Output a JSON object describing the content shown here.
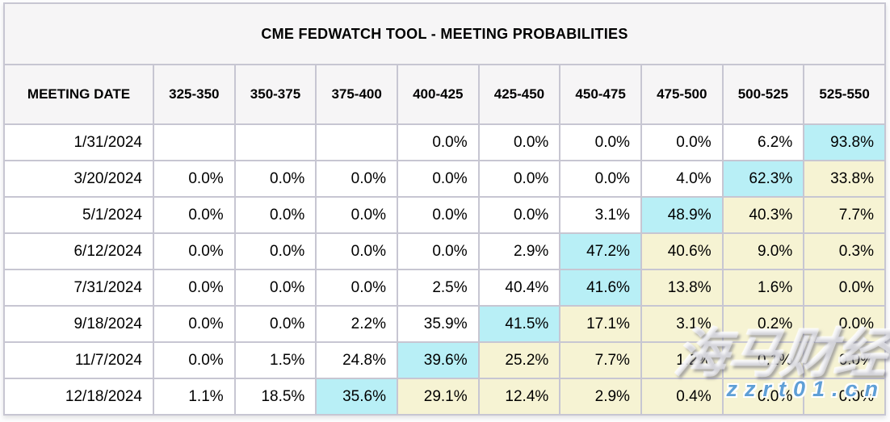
{
  "title": "CME FEDWATCH TOOL - MEETING PROBABILITIES",
  "table": {
    "date_header": "MEETING DATE",
    "rate_headers": [
      "325-350",
      "350-375",
      "375-400",
      "400-425",
      "425-450",
      "450-475",
      "475-500",
      "500-525",
      "525-550"
    ],
    "rows": [
      {
        "date": "1/31/2024",
        "cells": [
          {
            "v": "",
            "hl": "none"
          },
          {
            "v": "",
            "hl": "none"
          },
          {
            "v": "",
            "hl": "none"
          },
          {
            "v": "0.0%",
            "hl": "none"
          },
          {
            "v": "0.0%",
            "hl": "none"
          },
          {
            "v": "0.0%",
            "hl": "none"
          },
          {
            "v": "0.0%",
            "hl": "none"
          },
          {
            "v": "6.2%",
            "hl": "none"
          },
          {
            "v": "93.8%",
            "hl": "cyan"
          }
        ]
      },
      {
        "date": "3/20/2024",
        "cells": [
          {
            "v": "0.0%",
            "hl": "none"
          },
          {
            "v": "0.0%",
            "hl": "none"
          },
          {
            "v": "0.0%",
            "hl": "none"
          },
          {
            "v": "0.0%",
            "hl": "none"
          },
          {
            "v": "0.0%",
            "hl": "none"
          },
          {
            "v": "0.0%",
            "hl": "none"
          },
          {
            "v": "4.0%",
            "hl": "none"
          },
          {
            "v": "62.3%",
            "hl": "cyan"
          },
          {
            "v": "33.8%",
            "hl": "yellow"
          }
        ]
      },
      {
        "date": "5/1/2024",
        "cells": [
          {
            "v": "0.0%",
            "hl": "none"
          },
          {
            "v": "0.0%",
            "hl": "none"
          },
          {
            "v": "0.0%",
            "hl": "none"
          },
          {
            "v": "0.0%",
            "hl": "none"
          },
          {
            "v": "0.0%",
            "hl": "none"
          },
          {
            "v": "3.1%",
            "hl": "none"
          },
          {
            "v": "48.9%",
            "hl": "cyan"
          },
          {
            "v": "40.3%",
            "hl": "yellow"
          },
          {
            "v": "7.7%",
            "hl": "yellow"
          }
        ]
      },
      {
        "date": "6/12/2024",
        "cells": [
          {
            "v": "0.0%",
            "hl": "none"
          },
          {
            "v": "0.0%",
            "hl": "none"
          },
          {
            "v": "0.0%",
            "hl": "none"
          },
          {
            "v": "0.0%",
            "hl": "none"
          },
          {
            "v": "2.9%",
            "hl": "none"
          },
          {
            "v": "47.2%",
            "hl": "cyan"
          },
          {
            "v": "40.6%",
            "hl": "yellow"
          },
          {
            "v": "9.0%",
            "hl": "yellow"
          },
          {
            "v": "0.3%",
            "hl": "yellow"
          }
        ]
      },
      {
        "date": "7/31/2024",
        "cells": [
          {
            "v": "0.0%",
            "hl": "none"
          },
          {
            "v": "0.0%",
            "hl": "none"
          },
          {
            "v": "0.0%",
            "hl": "none"
          },
          {
            "v": "2.5%",
            "hl": "none"
          },
          {
            "v": "40.4%",
            "hl": "none"
          },
          {
            "v": "41.6%",
            "hl": "cyan"
          },
          {
            "v": "13.8%",
            "hl": "yellow"
          },
          {
            "v": "1.6%",
            "hl": "yellow"
          },
          {
            "v": "0.0%",
            "hl": "yellow"
          }
        ]
      },
      {
        "date": "9/18/2024",
        "cells": [
          {
            "v": "0.0%",
            "hl": "none"
          },
          {
            "v": "0.0%",
            "hl": "none"
          },
          {
            "v": "2.2%",
            "hl": "none"
          },
          {
            "v": "35.9%",
            "hl": "none"
          },
          {
            "v": "41.5%",
            "hl": "cyan"
          },
          {
            "v": "17.1%",
            "hl": "yellow"
          },
          {
            "v": "3.1%",
            "hl": "yellow"
          },
          {
            "v": "0.2%",
            "hl": "yellow"
          },
          {
            "v": "0.0%",
            "hl": "yellow"
          }
        ]
      },
      {
        "date": "11/7/2024",
        "cells": [
          {
            "v": "0.0%",
            "hl": "none"
          },
          {
            "v": "1.5%",
            "hl": "none"
          },
          {
            "v": "24.8%",
            "hl": "none"
          },
          {
            "v": "39.6%",
            "hl": "cyan"
          },
          {
            "v": "25.2%",
            "hl": "yellow"
          },
          {
            "v": "7.7%",
            "hl": "yellow"
          },
          {
            "v": "1.2%",
            "hl": "yellow"
          },
          {
            "v": "0.1%",
            "hl": "yellow"
          },
          {
            "v": "0.0%",
            "hl": "yellow"
          }
        ]
      },
      {
        "date": "12/18/2024",
        "cells": [
          {
            "v": "1.1%",
            "hl": "none"
          },
          {
            "v": "18.5%",
            "hl": "none"
          },
          {
            "v": "35.6%",
            "hl": "cyan"
          },
          {
            "v": "29.1%",
            "hl": "yellow"
          },
          {
            "v": "12.4%",
            "hl": "yellow"
          },
          {
            "v": "2.9%",
            "hl": "yellow"
          },
          {
            "v": "0.4%",
            "hl": "yellow"
          },
          {
            "v": "0.0%",
            "hl": "yellow"
          },
          {
            "v": "0.0%",
            "hl": "yellow"
          }
        ]
      }
    ]
  },
  "watermark": {
    "brand": "海马财经",
    "site": "zzrt01.cn"
  },
  "colors": {
    "header_bg": "#f6f5f6",
    "highlight_cyan": "#b8eff6",
    "highlight_yellow": "#f6f3d3",
    "border_inner": "#c7c6d2",
    "border_outer": "#b1afc0",
    "watermark_blue": "#5f9fd6"
  },
  "chart_data": {
    "type": "table",
    "title": "CME FEDWATCH TOOL - MEETING PROBABILITIES",
    "columns": [
      "MEETING DATE",
      "325-350",
      "350-375",
      "375-400",
      "400-425",
      "425-450",
      "450-475",
      "475-500",
      "500-525",
      "525-550"
    ],
    "units": "percent",
    "rows": [
      [
        "1/31/2024",
        null,
        null,
        null,
        0.0,
        0.0,
        0.0,
        0.0,
        6.2,
        93.8
      ],
      [
        "3/20/2024",
        0.0,
        0.0,
        0.0,
        0.0,
        0.0,
        0.0,
        4.0,
        62.3,
        33.8
      ],
      [
        "5/1/2024",
        0.0,
        0.0,
        0.0,
        0.0,
        0.0,
        3.1,
        48.9,
        40.3,
        7.7
      ],
      [
        "6/12/2024",
        0.0,
        0.0,
        0.0,
        0.0,
        2.9,
        47.2,
        40.6,
        9.0,
        0.3
      ],
      [
        "7/31/2024",
        0.0,
        0.0,
        0.0,
        2.5,
        40.4,
        41.6,
        13.8,
        1.6,
        0.0
      ],
      [
        "9/18/2024",
        0.0,
        0.0,
        2.2,
        35.9,
        41.5,
        17.1,
        3.1,
        0.2,
        0.0
      ],
      [
        "11/7/2024",
        0.0,
        1.5,
        24.8,
        39.6,
        25.2,
        7.7,
        1.2,
        0.1,
        0.0
      ],
      [
        "12/18/2024",
        1.1,
        18.5,
        35.6,
        29.1,
        12.4,
        2.9,
        0.4,
        0.0,
        0.0
      ]
    ]
  }
}
